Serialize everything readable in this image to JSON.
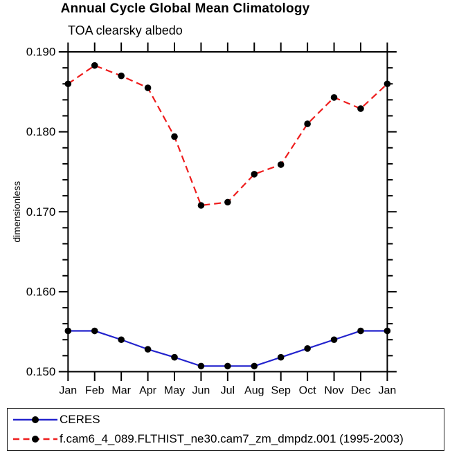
{
  "header": {
    "title": "Annual Cycle Global Mean Climatology",
    "subtitle": "TOA clearsky albedo"
  },
  "chart_data": {
    "type": "line",
    "title": "Annual Cycle Global Mean Climatology",
    "subtitle": "TOA clearsky albedo",
    "xlabel": "",
    "ylabel": "dimensionless",
    "categories": [
      "Jan",
      "Feb",
      "Mar",
      "Apr",
      "May",
      "Jun",
      "Jul",
      "Aug",
      "Sep",
      "Oct",
      "Nov",
      "Dec",
      "Jan"
    ],
    "ylim": [
      0.15,
      0.19
    ],
    "y_tick_labels": [
      "0.150",
      "0.160",
      "0.170",
      "0.180",
      "0.190"
    ],
    "y_major_ticks": [
      0.15,
      0.16,
      0.17,
      0.18,
      0.19
    ],
    "y_minor_step": 0.002,
    "grid": false,
    "legend_position": "bottom box, below plot",
    "marker": "filled-circle",
    "marker_color": "#000000",
    "series": [
      {
        "name": "CERES",
        "color": "#2323cd",
        "style": "solid",
        "values": [
          0.1551,
          0.1551,
          0.154,
          0.1528,
          0.1518,
          0.1507,
          0.1507,
          0.1507,
          0.1518,
          0.1529,
          0.154,
          0.1551,
          0.1551
        ]
      },
      {
        "name": "f.cam6_4_089.FLTHIST_ne30.cam7_zm_dmpdz.001 (1995-2003)",
        "color": "#ee1c1c",
        "style": "dashed",
        "values": [
          0.186,
          0.1883,
          0.187,
          0.1855,
          0.1794,
          0.1708,
          0.1712,
          0.1747,
          0.1759,
          0.181,
          0.1843,
          0.1829,
          0.186
        ]
      }
    ]
  }
}
